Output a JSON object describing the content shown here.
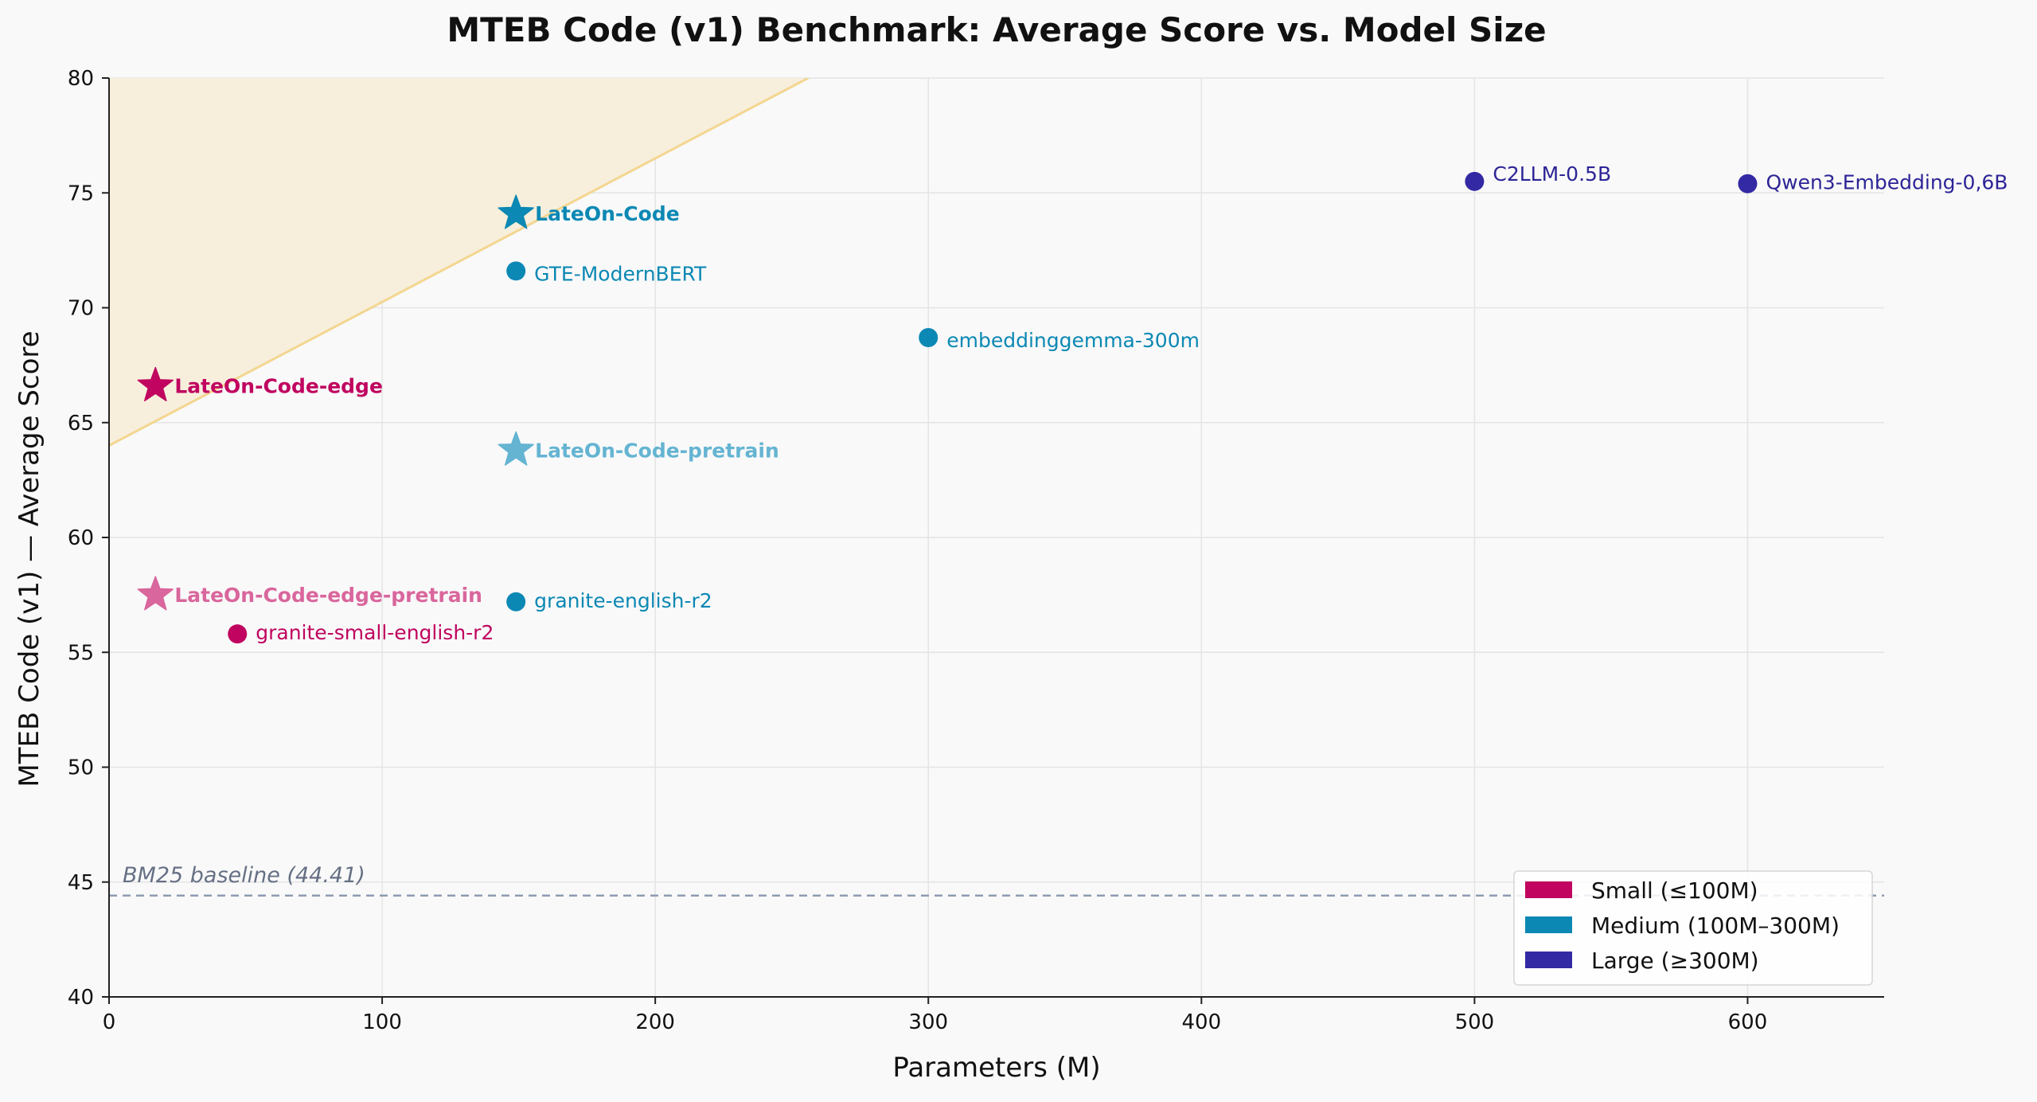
{
  "chart_data": {
    "type": "scatter",
    "title": "MTEB Code (v1) Benchmark: Average Score vs. Model Size",
    "xlabel": "Parameters (M)",
    "ylabel": "MTEB Code (v1) — Average Score",
    "xlim": [
      0,
      650
    ],
    "ylim": [
      40,
      80
    ],
    "xticks": [
      0,
      100,
      200,
      300,
      400,
      500,
      600
    ],
    "yticks": [
      40,
      45,
      50,
      55,
      60,
      65,
      70,
      75,
      80
    ],
    "grid": true,
    "colors": {
      "small": "#c0045f",
      "small_pretrain": "#d9669c",
      "medium": "#0c88b4",
      "medium_pretrain": "#64b4d2",
      "large": "#3429a4",
      "frontier_line": "#f3d690",
      "frontier_fill": "#f7efdc",
      "baseline": "#8f9bb3",
      "grid": "#e4e4e4",
      "background": "#f9f9f9"
    },
    "points": [
      {
        "label": "LateOn-Code",
        "x": 149,
        "y": 74.1,
        "marker": "star",
        "category": "medium",
        "bold": true
      },
      {
        "label": "GTE-ModernBERT",
        "x": 149,
        "y": 71.6,
        "marker": "circle",
        "category": "medium",
        "bold": false
      },
      {
        "label": "embeddinggemma-300m",
        "x": 300,
        "y": 68.7,
        "marker": "circle",
        "category": "medium",
        "bold": false
      },
      {
        "label": "C2LLM-0.5B",
        "x": 500,
        "y": 75.5,
        "marker": "circle",
        "category": "large",
        "bold": false
      },
      {
        "label": "Qwen3-Embedding-0,6B",
        "x": 600,
        "y": 75.4,
        "marker": "circle",
        "category": "large",
        "bold": false
      },
      {
        "label": "LateOn-Code-edge",
        "x": 17,
        "y": 66.6,
        "marker": "star",
        "category": "small",
        "bold": true
      },
      {
        "label": "LateOn-Code-pretrain",
        "x": 149,
        "y": 63.8,
        "marker": "star",
        "category": "medium_pretrain",
        "bold": true
      },
      {
        "label": "LateOn-Code-edge-pretrain",
        "x": 17,
        "y": 57.5,
        "marker": "star",
        "category": "small_pretrain",
        "bold": true
      },
      {
        "label": "granite-english-r2",
        "x": 149,
        "y": 57.2,
        "marker": "circle",
        "category": "medium",
        "bold": false
      },
      {
        "label": "granite-small-english-r2",
        "x": 47,
        "y": 55.8,
        "marker": "circle",
        "category": "small",
        "bold": false
      }
    ],
    "frontier": {
      "x": [
        0,
        256
      ],
      "y": [
        64.0,
        80.0
      ]
    },
    "baseline": {
      "label": "BM25 baseline (44.41)",
      "value": 44.41
    },
    "legend": {
      "placement": "lower-right",
      "entries": [
        {
          "label": "Small (≤100M)",
          "category": "small"
        },
        {
          "label": "Medium (100M–300M)",
          "category": "medium"
        },
        {
          "label": "Large (≥300M)",
          "category": "large"
        }
      ]
    }
  }
}
